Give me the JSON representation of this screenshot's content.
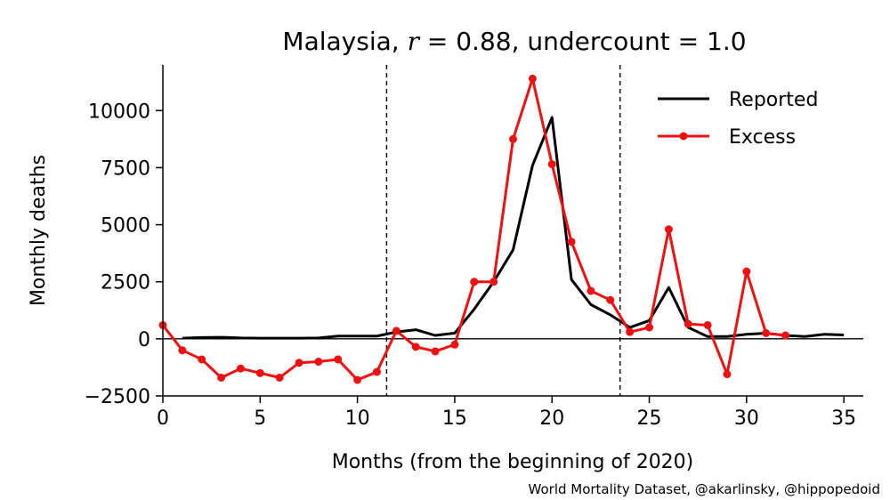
{
  "chart_data": {
    "type": "line",
    "title": {
      "prefix": "Malaysia, ",
      "r_symbol": "r",
      "r_text": " = 0.88, undercount = 1.0"
    },
    "xlabel": "Months (from the beginning of 2020)",
    "ylabel": "Monthly deaths",
    "xlim": [
      0,
      36
    ],
    "ylim": [
      -2500,
      12000
    ],
    "xticks": [
      0,
      5,
      10,
      15,
      20,
      25,
      30,
      35
    ],
    "yticks": [
      -2500,
      0,
      2500,
      5000,
      7500,
      10000
    ],
    "ytick_labels": [
      "−2500",
      "0",
      "2500",
      "5000",
      "7500",
      "10000"
    ],
    "vlines": [
      11.5,
      23.5
    ],
    "hline": 0,
    "legend_position": "top-right",
    "series": [
      {
        "name": "Reported",
        "color": "#000000",
        "marker": false,
        "x": [
          1,
          2,
          3,
          4,
          5,
          6,
          7,
          8,
          9,
          10,
          11,
          12,
          13,
          14,
          15,
          16,
          17,
          18,
          19,
          20,
          21,
          22,
          23,
          24,
          25,
          26,
          27,
          28,
          29,
          30,
          31,
          32,
          33,
          34,
          35
        ],
        "values": [
          30,
          60,
          70,
          40,
          30,
          30,
          30,
          40,
          120,
          120,
          120,
          300,
          400,
          150,
          250,
          1300,
          2500,
          3900,
          7600,
          9700,
          2600,
          1500,
          1050,
          500,
          800,
          2250,
          500,
          100,
          100,
          200,
          250,
          150,
          100,
          200,
          170
        ]
      },
      {
        "name": "Excess",
        "color": "#ee1111",
        "marker": true,
        "x": [
          0,
          1,
          2,
          3,
          4,
          5,
          6,
          7,
          8,
          9,
          10,
          11,
          12,
          13,
          14,
          15,
          16,
          17,
          18,
          19,
          20,
          21,
          22,
          23,
          24,
          25,
          26,
          27,
          28,
          29,
          30,
          31,
          32
        ],
        "values": [
          600,
          -500,
          -900,
          -1700,
          -1300,
          -1500,
          -1700,
          -1050,
          -1000,
          -900,
          -1800,
          -1450,
          350,
          -350,
          -550,
          -250,
          2500,
          2500,
          8750,
          11400,
          7650,
          4250,
          2100,
          1700,
          300,
          500,
          4800,
          650,
          600,
          -1550,
          2950,
          250,
          150
        ]
      }
    ]
  },
  "credit": "World Mortality Dataset, @akarlinsky, @hippopedoid"
}
